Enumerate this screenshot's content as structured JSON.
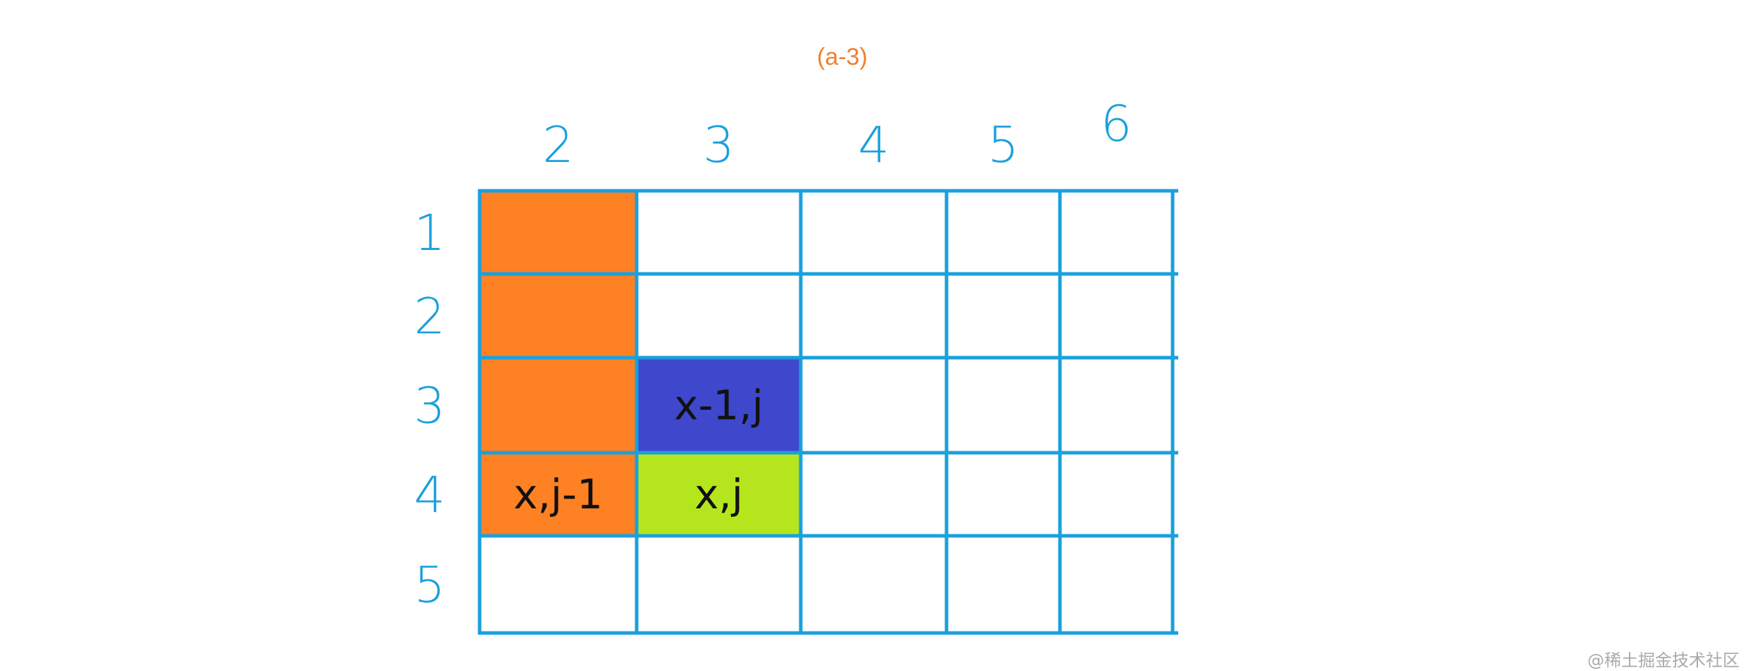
{
  "title": "(a-3)",
  "watermark": "@稀土掘金技术社区",
  "colors": {
    "grid": "#1aa0dc",
    "orange": "#fe8124",
    "blue": "#3f48cc",
    "lime": "#b5e61d",
    "title": "#f08030"
  },
  "grid": {
    "columns": [
      "2",
      "3",
      "4",
      "5",
      "6"
    ],
    "rows": [
      "1",
      "2",
      "3",
      "4",
      "5"
    ],
    "cells": [
      {
        "row": "1",
        "col": "2",
        "fill": "orange",
        "text": ""
      },
      {
        "row": "2",
        "col": "2",
        "fill": "orange",
        "text": ""
      },
      {
        "row": "3",
        "col": "2",
        "fill": "orange",
        "text": ""
      },
      {
        "row": "4",
        "col": "2",
        "fill": "orange",
        "text": "x,j-1"
      },
      {
        "row": "3",
        "col": "3",
        "fill": "blue",
        "text": "x-1,j"
      },
      {
        "row": "4",
        "col": "3",
        "fill": "lime",
        "text": "x,j"
      }
    ]
  }
}
